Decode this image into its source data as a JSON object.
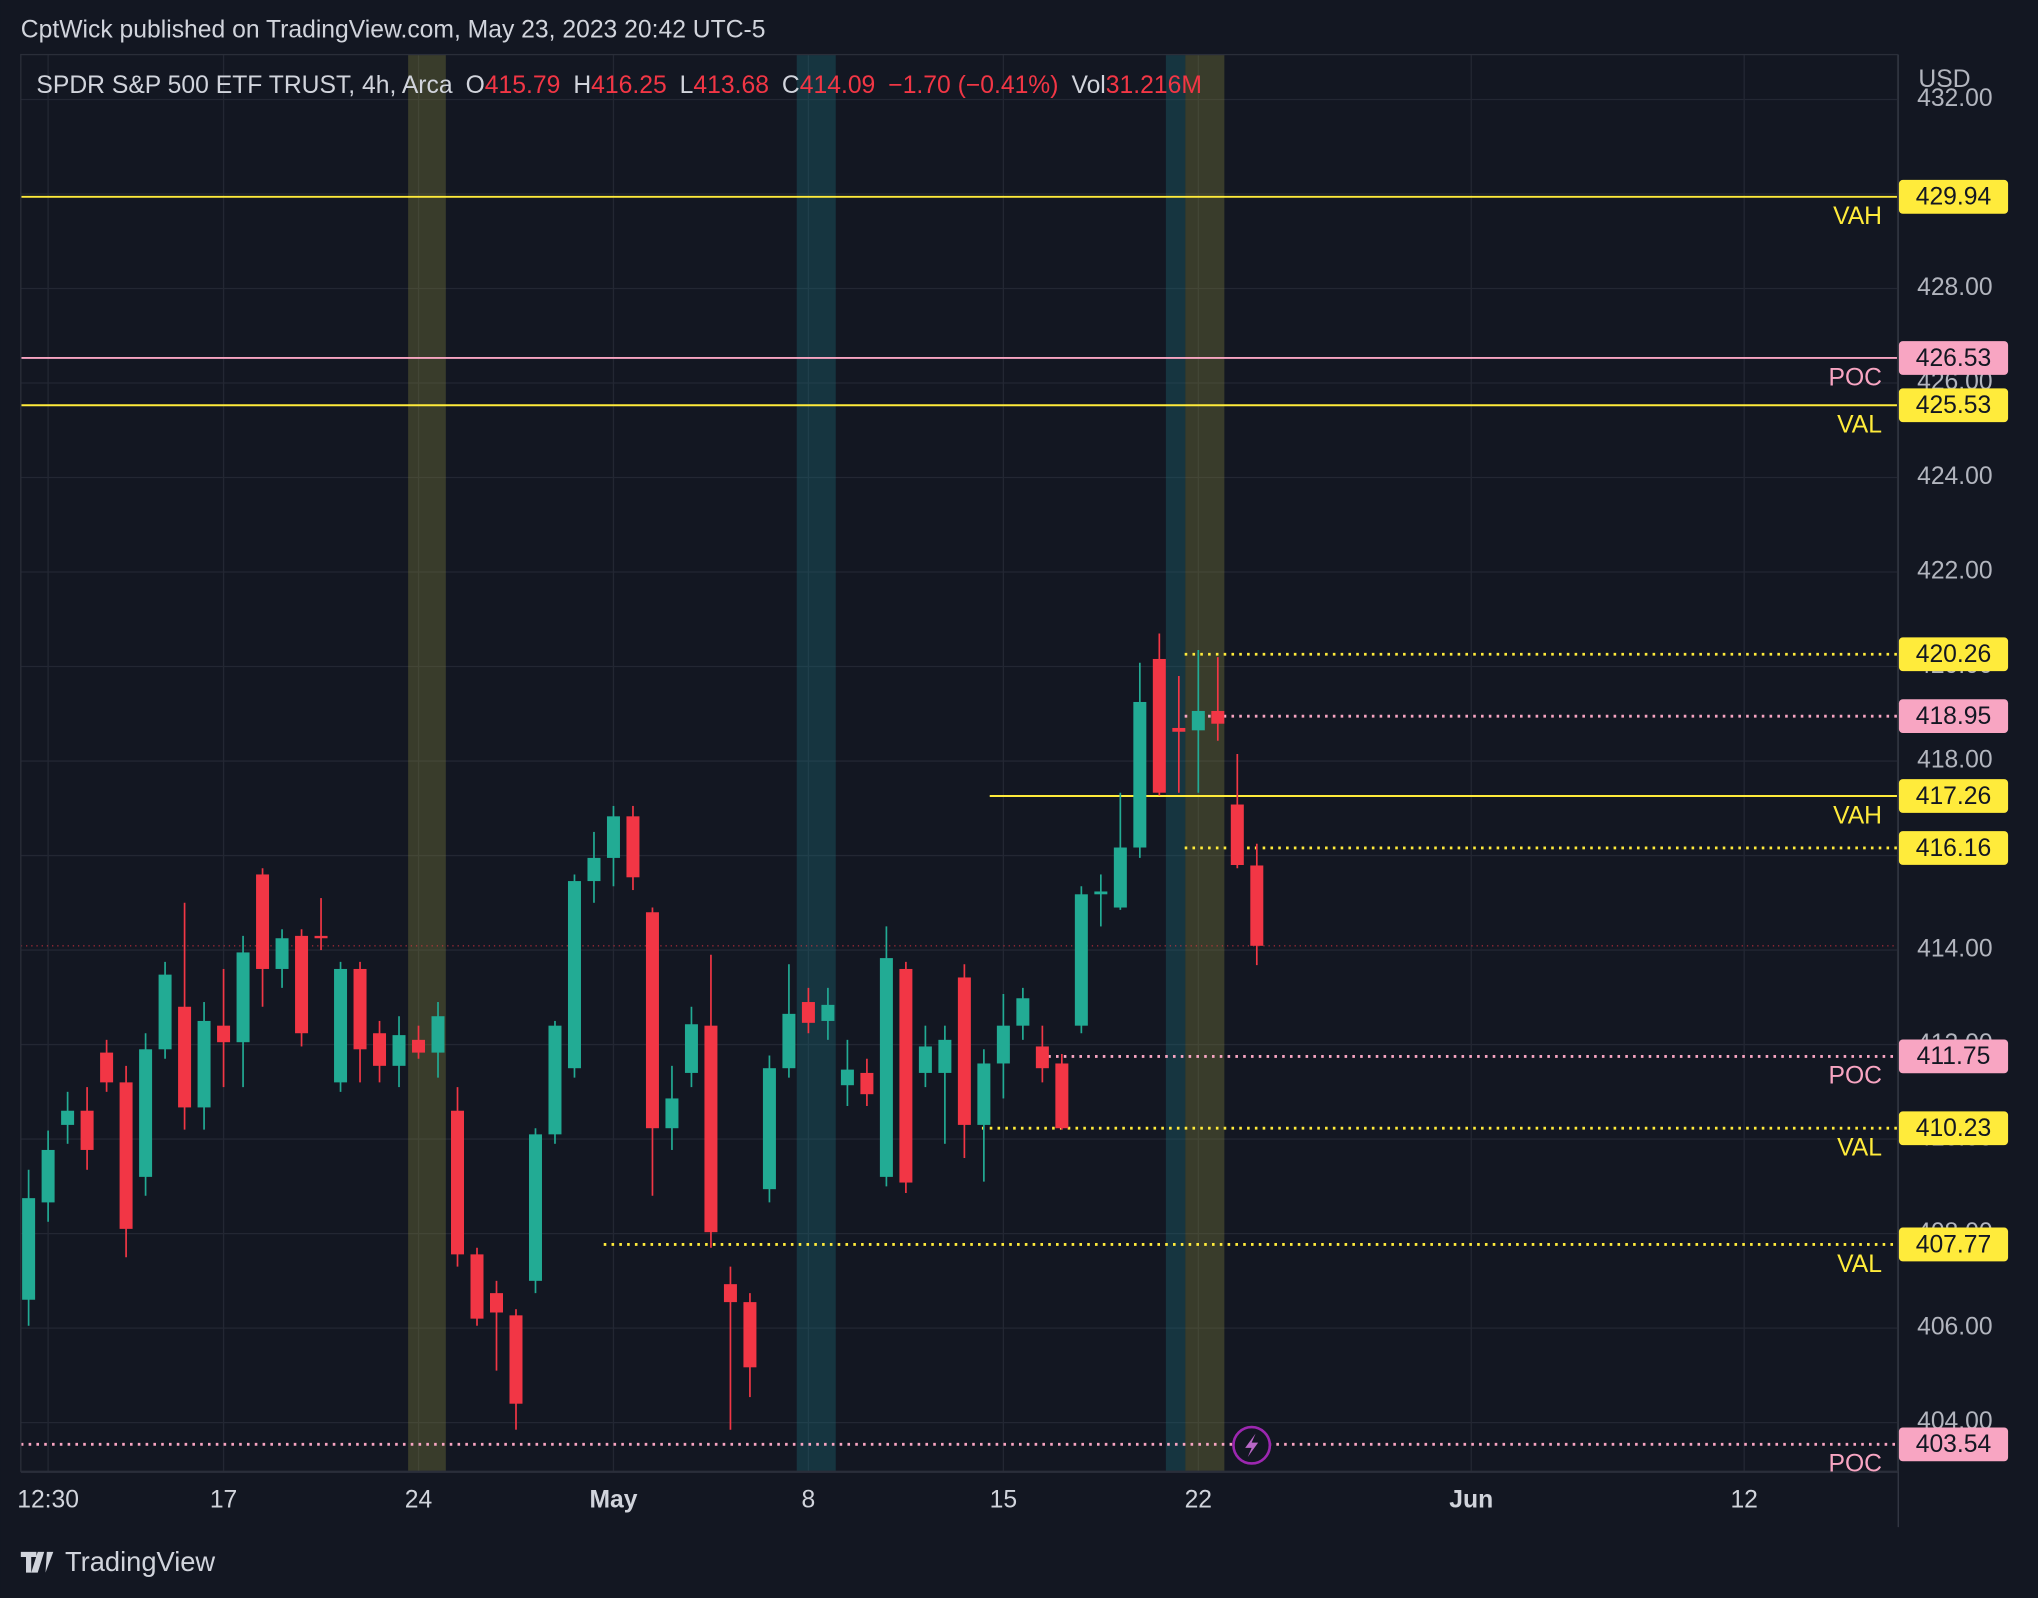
{
  "header": {
    "published": "CptWick published on TradingView.com, May 23, 2023 20:42 UTC-5"
  },
  "footer": {
    "brand": "TradingView"
  },
  "chart_data": {
    "type": "candlestick",
    "legend": {
      "symbol": "SPDR S&P 500 ETF TRUST, 4h, Arca",
      "open_label": "O",
      "open": 415.79,
      "high_label": "H",
      "high": 416.25,
      "low_label": "L",
      "low": 413.68,
      "close_label": "C",
      "close": 414.09,
      "change": "−1.70 (−0.41%)",
      "volume_label": "Vol",
      "volume": "31.216M"
    },
    "currency": "USD",
    "up_color": "#22ab94",
    "down_color": "#f23645",
    "x": [
      0,
      1,
      2,
      3,
      4,
      5,
      6,
      7,
      8,
      9,
      10,
      11,
      12,
      13,
      14,
      15,
      16,
      17,
      18,
      19,
      20,
      21,
      22,
      23,
      24,
      25,
      26,
      27,
      28,
      29,
      30,
      31,
      32,
      33,
      34,
      35,
      36,
      37,
      38,
      39,
      40,
      41,
      42,
      43,
      44,
      45,
      46,
      47,
      48,
      49,
      50,
      51,
      52,
      53,
      54,
      55,
      56,
      57,
      58,
      59,
      60,
      61,
      62,
      63
    ],
    "open": [
      406.6,
      408.66,
      410.3,
      410.6,
      411.83,
      411.2,
      409.2,
      411.9,
      412.8,
      410.67,
      412.4,
      412.05,
      415.6,
      413.6,
      414.3,
      414.3,
      411.2,
      413.6,
      412.24,
      411.55,
      412.1,
      411.83,
      410.6,
      407.56,
      406.74,
      406.27,
      407.0,
      410.1,
      411.5,
      415.46,
      415.95,
      416.83,
      414.8,
      410.23,
      411.4,
      412.4,
      406.93,
      406.55,
      408.94,
      411.5,
      412.9,
      412.5,
      411.14,
      411.4,
      409.2,
      413.6,
      411.4,
      411.4,
      413.42,
      410.3,
      411.6,
      412.4,
      411.96,
      411.6,
      412.4,
      415.18,
      414.9,
      416.17,
      420.16,
      418.7,
      418.65,
      419.06,
      417.08,
      415.79
    ],
    "high": [
      409.35,
      410.18,
      411.0,
      411.1,
      412.1,
      411.55,
      412.24,
      413.75,
      415.0,
      412.9,
      413.6,
      414.3,
      415.73,
      414.44,
      414.44,
      415.1,
      413.75,
      413.75,
      412.5,
      412.6,
      412.4,
      412.9,
      411.1,
      407.7,
      407.0,
      406.4,
      410.23,
      412.5,
      415.6,
      416.5,
      417.05,
      417.05,
      414.9,
      411.55,
      412.8,
      413.9,
      407.3,
      406.74,
      411.77,
      413.7,
      413.2,
      413.2,
      412.1,
      411.7,
      414.5,
      413.75,
      412.4,
      412.4,
      413.7,
      411.9,
      413.07,
      413.2,
      412.4,
      411.8,
      415.35,
      415.6,
      417.33,
      420.08,
      420.7,
      419.8,
      420.35,
      420.2,
      418.15,
      416.25
    ],
    "low": [
      406.05,
      408.25,
      409.9,
      409.35,
      411.0,
      407.5,
      408.8,
      411.7,
      410.2,
      410.2,
      411.1,
      411.1,
      412.8,
      413.2,
      411.96,
      414.0,
      411.0,
      411.2,
      411.2,
      411.1,
      411.7,
      411.3,
      407.3,
      406.05,
      405.1,
      403.85,
      406.74,
      409.9,
      411.3,
      415.0,
      415.35,
      415.27,
      408.8,
      409.77,
      411.1,
      407.7,
      403.85,
      404.54,
      408.66,
      411.3,
      412.24,
      412.1,
      410.7,
      410.7,
      409.0,
      408.86,
      411.1,
      409.9,
      409.6,
      409.1,
      410.86,
      412.1,
      411.2,
      410.2,
      412.24,
      414.5,
      414.85,
      415.95,
      417.27,
      417.33,
      417.33,
      418.43,
      415.73,
      413.68
    ],
    "close": [
      408.75,
      409.77,
      410.6,
      409.77,
      411.2,
      408.1,
      411.9,
      413.48,
      410.67,
      412.5,
      412.05,
      413.95,
      413.6,
      414.25,
      412.24,
      414.25,
      413.6,
      411.9,
      411.55,
      412.2,
      411.83,
      412.6,
      407.56,
      406.2,
      406.33,
      404.4,
      410.1,
      412.4,
      415.46,
      415.95,
      416.83,
      415.54,
      410.23,
      410.86,
      412.43,
      408.03,
      406.55,
      405.17,
      411.5,
      412.65,
      412.46,
      412.84,
      411.47,
      410.95,
      413.83,
      409.08,
      411.96,
      412.1,
      410.3,
      411.6,
      412.4,
      412.98,
      411.5,
      410.23,
      415.18,
      415.24,
      416.17,
      419.25,
      417.33,
      418.62,
      419.06,
      418.79,
      415.8,
      414.09
    ],
    "xlim": [
      -0.4,
      95.87
    ],
    "xticks": [
      {
        "value": 1,
        "label": "12:30"
      },
      {
        "value": 10,
        "label": "17"
      },
      {
        "value": 20,
        "label": "24"
      },
      {
        "value": 30,
        "label": "May"
      },
      {
        "value": 40,
        "label": "8"
      },
      {
        "value": 50,
        "label": "15"
      },
      {
        "value": 60,
        "label": "22"
      },
      {
        "value": 74,
        "label": "Jun"
      },
      {
        "value": 88,
        "label": "12"
      }
    ],
    "ylim": [
      402.97,
      432.95
    ],
    "yticks": [
      {
        "value": 404,
        "label": "404.00"
      },
      {
        "value": 406,
        "label": "406.00"
      },
      {
        "value": 408,
        "label": "408.00"
      },
      {
        "value": 410,
        "label": "410.00"
      },
      {
        "value": 412,
        "label": "412.00"
      },
      {
        "value": 414,
        "label": "414.00"
      },
      {
        "value": 416,
        "label": "416.00"
      },
      {
        "value": 418,
        "label": "418.00"
      },
      {
        "value": 420,
        "label": "420.00"
      },
      {
        "value": 422,
        "label": "422.00"
      },
      {
        "value": 424,
        "label": "424.00"
      },
      {
        "value": 426,
        "label": "426.00"
      },
      {
        "value": 428,
        "label": "428.00"
      },
      {
        "value": 430,
        "label": "430.00"
      },
      {
        "value": 432,
        "label": "432.00"
      }
    ],
    "grid": true,
    "levels": [
      {
        "value": 429.94,
        "label": "VAH",
        "color": "#ffeb3b",
        "style": "solid"
      },
      {
        "value": 426.53,
        "label": "POC",
        "color": "#f8a5c2",
        "style": "solid"
      },
      {
        "value": 425.53,
        "label": "VAL",
        "color": "#ffeb3b",
        "style": "solid"
      },
      {
        "value": 420.26,
        "color": "#ffeb3b",
        "style": "dotted",
        "start": 59.3
      },
      {
        "value": 418.95,
        "color": "#f8a5c2",
        "style": "dotted",
        "start": 59.3
      },
      {
        "value": 417.26,
        "label": "VAH",
        "color": "#ffeb3b",
        "style": "solid",
        "start": 49.3
      },
      {
        "value": 416.16,
        "color": "#ffeb3b",
        "style": "dotted",
        "start": 59.3
      },
      {
        "value": 411.75,
        "label": "POC",
        "color": "#f8a5c2",
        "style": "dotted",
        "start": 51.9
      },
      {
        "value": 410.23,
        "label": "VAL",
        "color": "#ffeb3b",
        "style": "dotted",
        "start": 48.9
      },
      {
        "value": 407.77,
        "label": "VAL",
        "color": "#ffeb3b",
        "style": "dotted",
        "start": 29.5
      },
      {
        "value": 403.54,
        "label": "POC",
        "color": "#f8a5c2",
        "style": "dotted"
      }
    ]
  }
}
